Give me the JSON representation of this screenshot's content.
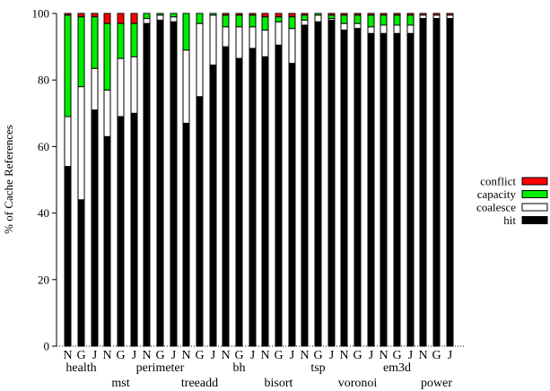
{
  "chart_data": {
    "type": "bar",
    "stacked": true,
    "ylabel": "% of Cache References",
    "ylim": [
      0,
      100
    ],
    "yticks": [
      0,
      20,
      40,
      60,
      80,
      100
    ],
    "legend_position": "top-right",
    "series": [
      {
        "name": "hit",
        "color": "#000000"
      },
      {
        "name": "coalesce",
        "color": "#ffffff"
      },
      {
        "name": "capacity",
        "color": "#00ee00"
      },
      {
        "name": "conflict",
        "color": "#ff0000"
      }
    ],
    "legend_order": [
      "conflict",
      "capacity",
      "coalesce",
      "hit"
    ],
    "benchmarks": [
      {
        "name": "health",
        "variants": [
          "N",
          "G",
          "J"
        ],
        "bars": [
          {
            "hit": 54,
            "coalesce": 15,
            "capacity": 30.5,
            "conflict": 0.5
          },
          {
            "hit": 44,
            "coalesce": 34,
            "capacity": 21,
            "conflict": 1
          },
          {
            "hit": 71,
            "coalesce": 12.5,
            "capacity": 15.5,
            "conflict": 1
          }
        ]
      },
      {
        "name": "mst",
        "variants": [
          "N",
          "G",
          "J"
        ],
        "bars": [
          {
            "hit": 63,
            "coalesce": 14,
            "capacity": 20,
            "conflict": 3
          },
          {
            "hit": 69,
            "coalesce": 17.5,
            "capacity": 10.5,
            "conflict": 3
          },
          {
            "hit": 70,
            "coalesce": 17,
            "capacity": 10,
            "conflict": 3
          }
        ]
      },
      {
        "name": "perimeter",
        "variants": [
          "N",
          "G",
          "J"
        ],
        "bars": [
          {
            "hit": 97,
            "coalesce": 1.5,
            "capacity": 1.5,
            "conflict": 0
          },
          {
            "hit": 98,
            "coalesce": 1.5,
            "capacity": 0.5,
            "conflict": 0
          },
          {
            "hit": 97.5,
            "coalesce": 1.5,
            "capacity": 1,
            "conflict": 0
          }
        ]
      },
      {
        "name": "treeadd",
        "variants": [
          "N",
          "G",
          "J"
        ],
        "bars": [
          {
            "hit": 67,
            "coalesce": 22,
            "capacity": 11,
            "conflict": 0
          },
          {
            "hit": 75,
            "coalesce": 22,
            "capacity": 3,
            "conflict": 0
          },
          {
            "hit": 84.5,
            "coalesce": 15,
            "capacity": 0.5,
            "conflict": 0
          }
        ]
      },
      {
        "name": "bh",
        "variants": [
          "N",
          "G",
          "J"
        ],
        "bars": [
          {
            "hit": 90,
            "coalesce": 6,
            "capacity": 3.5,
            "conflict": 0.5
          },
          {
            "hit": 86.5,
            "coalesce": 9.5,
            "capacity": 3.5,
            "conflict": 0.5
          },
          {
            "hit": 89.5,
            "coalesce": 6.5,
            "capacity": 3.5,
            "conflict": 0.5
          }
        ]
      },
      {
        "name": "bisort",
        "variants": [
          "N",
          "G",
          "J"
        ],
        "bars": [
          {
            "hit": 87,
            "coalesce": 8,
            "capacity": 4,
            "conflict": 1
          },
          {
            "hit": 90.5,
            "coalesce": 7,
            "capacity": 1.5,
            "conflict": 1
          },
          {
            "hit": 85,
            "coalesce": 10.5,
            "capacity": 3.5,
            "conflict": 1
          }
        ]
      },
      {
        "name": "tsp",
        "variants": [
          "N",
          "G",
          "J"
        ],
        "bars": [
          {
            "hit": 96.5,
            "coalesce": 1.5,
            "capacity": 1.5,
            "conflict": 0.5
          },
          {
            "hit": 97.5,
            "coalesce": 2,
            "capacity": 0.5,
            "conflict": 0
          },
          {
            "hit": 98,
            "coalesce": 0.5,
            "capacity": 1,
            "conflict": 0.5
          }
        ]
      },
      {
        "name": "voronoi",
        "variants": [
          "N",
          "G",
          "J"
        ],
        "bars": [
          {
            "hit": 95,
            "coalesce": 2,
            "capacity": 2.5,
            "conflict": 0.5
          },
          {
            "hit": 95.5,
            "coalesce": 1.5,
            "capacity": 2.5,
            "conflict": 0.5
          },
          {
            "hit": 94,
            "coalesce": 2,
            "capacity": 3.5,
            "conflict": 0.5
          }
        ]
      },
      {
        "name": "em3d",
        "variants": [
          "N",
          "G",
          "J"
        ],
        "bars": [
          {
            "hit": 94,
            "coalesce": 2.5,
            "capacity": 3,
            "conflict": 0.5
          },
          {
            "hit": 94,
            "coalesce": 2.5,
            "capacity": 3,
            "conflict": 0.5
          },
          {
            "hit": 94,
            "coalesce": 2.5,
            "capacity": 3,
            "conflict": 0.5
          }
        ]
      },
      {
        "name": "power",
        "variants": [
          "N",
          "G",
          "J"
        ],
        "bars": [
          {
            "hit": 98.5,
            "coalesce": 1,
            "capacity": 0,
            "conflict": 0.5
          },
          {
            "hit": 98.5,
            "coalesce": 1,
            "capacity": 0,
            "conflict": 0.5
          },
          {
            "hit": 98.5,
            "coalesce": 1,
            "capacity": 0,
            "conflict": 0.5
          }
        ]
      }
    ]
  }
}
